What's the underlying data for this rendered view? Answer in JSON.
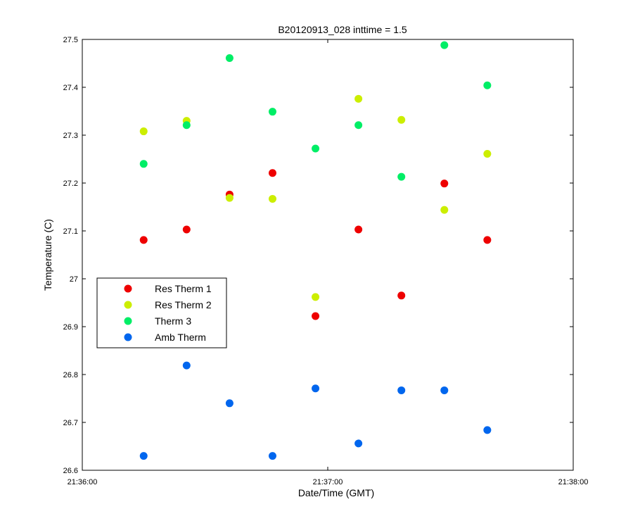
{
  "chart_data": {
    "type": "scatter",
    "title": "B20120913_028 inttime = 1.5",
    "xlabel": "Date/Time (GMT)",
    "ylabel": "Temperature (C)",
    "x_unit": "time",
    "xlim": [
      "21:36:00",
      "21:38:00"
    ],
    "ylim": [
      26.6,
      27.5
    ],
    "x_ticks": [
      "21:36:00",
      "21:37:00",
      "21:38:00"
    ],
    "y_ticks": [
      "26.6",
      "26.7",
      "26.8",
      "26.9",
      "27",
      "27.1",
      "27.2",
      "27.3",
      "27.4",
      "27.5"
    ],
    "grid": false,
    "legend_position": "middle-left",
    "x": [
      "21:36:15",
      "21:36:25.5",
      "21:36:36",
      "21:36:46.5",
      "21:36:57",
      "21:37:07.5",
      "21:37:18",
      "21:37:28.5",
      "21:37:39"
    ],
    "series": [
      {
        "name": "Res Therm 1",
        "color": "#ee0000",
        "values": [
          27.081,
          27.103,
          27.176,
          27.221,
          26.922,
          27.103,
          26.965,
          27.199,
          27.081
        ]
      },
      {
        "name": "Res Therm 2",
        "color": "#ccee00",
        "values": [
          27.308,
          27.33,
          27.169,
          27.167,
          26.962,
          27.376,
          27.332,
          27.144,
          27.261
        ]
      },
      {
        "name": "Therm 3",
        "color": "#00ee66",
        "values": [
          27.24,
          27.321,
          27.461,
          27.349,
          27.272,
          27.321,
          27.213,
          27.488,
          27.404
        ]
      },
      {
        "name": "Amb Therm",
        "color": "#0066ee",
        "values": [
          26.63,
          26.819,
          26.74,
          26.63,
          26.771,
          26.656,
          26.767,
          26.767,
          26.684
        ]
      }
    ]
  }
}
